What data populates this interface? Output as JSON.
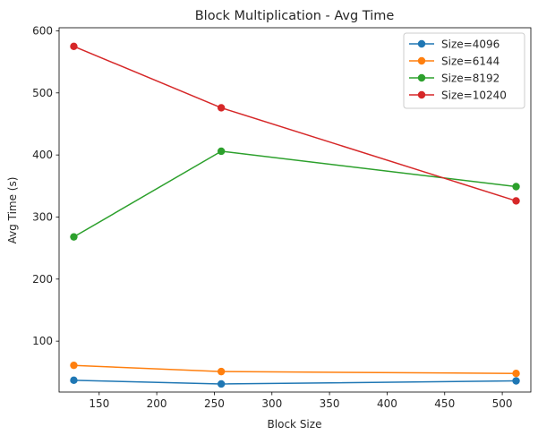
{
  "chart_data": {
    "type": "line",
    "title": "Block Multiplication - Avg Time",
    "xlabel": "Block Size",
    "ylabel": "Avg Time (s)",
    "x": [
      128,
      256,
      512
    ],
    "xlim": [
      115.2,
      524.8
    ],
    "ylim": [
      18,
      605
    ],
    "xticks": [
      150,
      200,
      250,
      300,
      350,
      400,
      450,
      500
    ],
    "yticks": [
      100,
      200,
      300,
      400,
      500,
      600
    ],
    "grid": false,
    "legend_position": "top-right",
    "series": [
      {
        "name": "Size=4096",
        "color": "#1f77b4",
        "values": [
          37,
          31,
          36
        ]
      },
      {
        "name": "Size=6144",
        "color": "#ff7f0e",
        "values": [
          61,
          51,
          48
        ]
      },
      {
        "name": "Size=8192",
        "color": "#2ca02c",
        "values": [
          268,
          406,
          349
        ]
      },
      {
        "name": "Size=10240",
        "color": "#d62728",
        "values": [
          575,
          476,
          326
        ]
      }
    ]
  }
}
